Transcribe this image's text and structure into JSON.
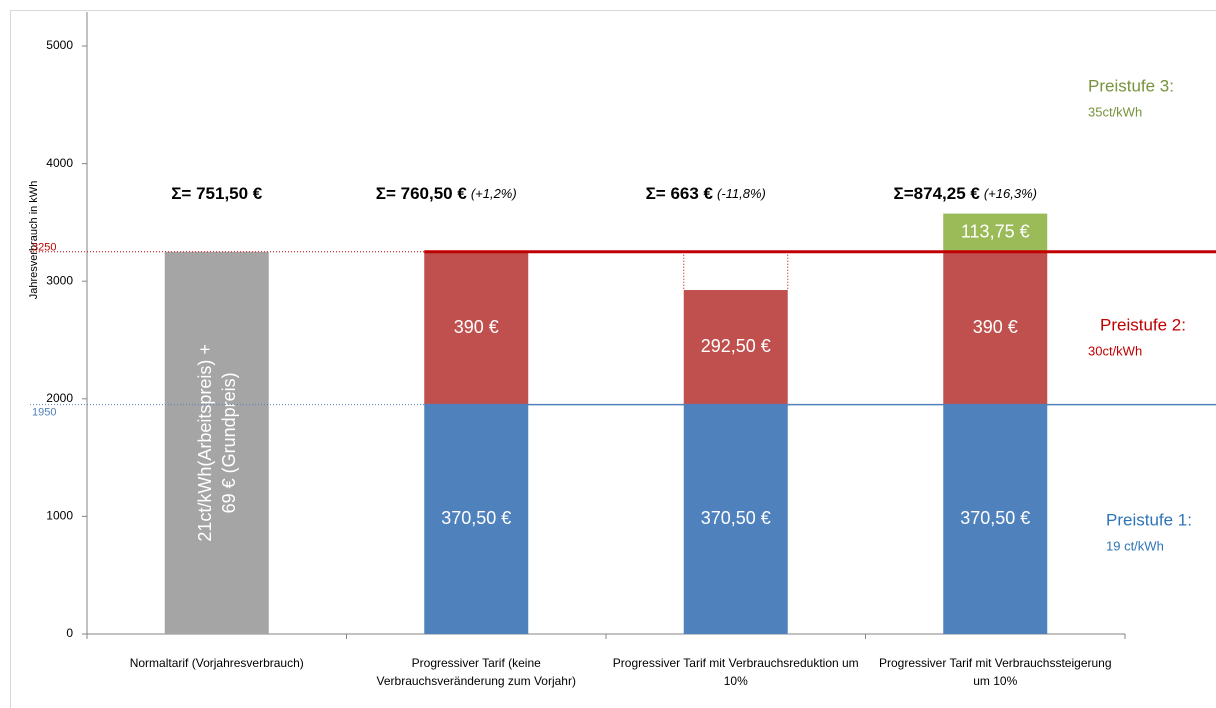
{
  "chart_data": {
    "type": "stacked_bar",
    "y_label": "Jahresverbrauch in kWh",
    "categories": [
      "Normaltarif (Vorjahresverbrauch)",
      "Progressiver Tarif (keine Verbrauchsveränderung zum Vorjahr)",
      "Progressiver Tarif mit Verbrauchsreduktion um 10%",
      "Progressiver Tarif mit Verbrauchssteigerung um 10%"
    ],
    "ylim": [
      0,
      5000
    ],
    "yticks": [
      0,
      1000,
      2000,
      3000,
      4000,
      5000
    ],
    "series": [
      {
        "color": "#a5a5a5",
        "values": [
          3250,
          null,
          null,
          null
        ]
      },
      {
        "name": "Preistufe 1:",
        "rate": "19 ct/kWh",
        "color": "#4f81bd",
        "text_color": "#2e75b6",
        "values": [
          null,
          1950,
          1950,
          1950
        ],
        "cost_labels": [
          null,
          "370,50 €",
          "370,50 €",
          "370,50 €"
        ]
      },
      {
        "name": "Preistufe 2:",
        "rate": "30ct/kWh",
        "color": "#c0504d",
        "text_color": "#c00000",
        "values": [
          null,
          1300,
          975,
          1300
        ],
        "cost_labels": [
          null,
          "390 €",
          "292,50 €",
          "390 €"
        ]
      },
      {
        "name": "Preistufe 3:",
        "rate": "35ct/kWh",
        "color": "#9bbb59",
        "text_color": "#77933c",
        "values": [
          null,
          null,
          null,
          325
        ],
        "cost_labels": [
          null,
          null,
          null,
          "113,75 €"
        ]
      }
    ],
    "bar_annotation": [
      "21ct/kWh(Arbeitspreis) +",
      "69 € (Grundpreis)"
    ],
    "sum_labels": [
      "Σ= 751,50 €",
      "Σ=  760,50 €",
      "Σ= 663 €",
      "Σ=874,25 €"
    ],
    "change_labels": [
      null,
      "(+1,2%)",
      "(-11,8%)",
      "(+16,3%)"
    ],
    "reference_lines": [
      {
        "value": 3250,
        "color": "#c00000"
      },
      {
        "value": 1950,
        "color": "#4f81bd"
      }
    ]
  }
}
